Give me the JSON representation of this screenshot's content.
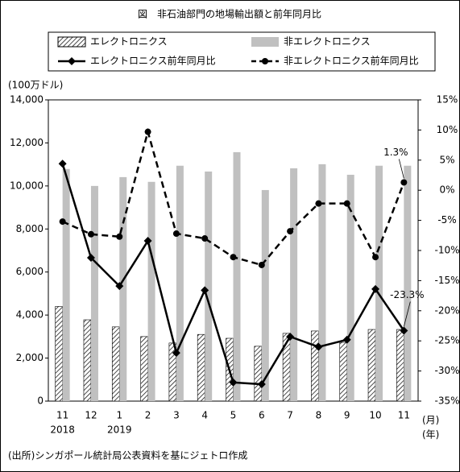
{
  "chart_data": {
    "type": "bar-line",
    "title": "図　非石油部門の地場輸出額と前年同月比",
    "y_unit": "(100万ドル)",
    "x_unit": "(月)",
    "x_unit2": "(年)",
    "source": "(出所)シンガポール統計局公表資料を基にジェトロ作成",
    "categories": [
      "11",
      "12",
      "1",
      "2",
      "3",
      "4",
      "5",
      "6",
      "7",
      "8",
      "9",
      "10",
      "11"
    ],
    "year_labels": [
      "2018",
      null,
      "2019",
      null,
      null,
      null,
      null,
      null,
      null,
      null,
      null,
      null,
      null
    ],
    "ylim": [
      0,
      14000
    ],
    "yticks": [
      0,
      {
        "value": 2000,
        "label": "2,000"
      },
      {
        "value": 4000,
        "label": "4,000"
      },
      {
        "value": 6000,
        "label": "6,000"
      },
      {
        "value": 8000,
        "label": "8,000"
      },
      {
        "value": 10000,
        "label": "10,000"
      },
      {
        "value": 12000,
        "label": "12,000"
      },
      {
        "value": 14000,
        "label": "14,000"
      }
    ],
    "y2lim": [
      -35,
      15
    ],
    "y2ticks": [
      {
        "value": -35,
        "label": "-35%"
      },
      {
        "value": -30,
        "label": "-30%"
      },
      {
        "value": -25,
        "label": "-25%"
      },
      {
        "value": -20,
        "label": "-20%"
      },
      {
        "value": -15,
        "label": "-15%"
      },
      {
        "value": -10,
        "label": "-10%"
      },
      {
        "value": -5,
        "label": "-5%"
      },
      {
        "value": 0,
        "label": "0%"
      },
      {
        "value": 5,
        "label": "5%"
      },
      {
        "value": 10,
        "label": "10%"
      },
      {
        "value": 15,
        "label": "15%"
      }
    ],
    "series": [
      {
        "name": "エレクトロニクス",
        "kind": "bar",
        "pattern": "hatch",
        "color": "#000000",
        "values": [
          4400,
          3780,
          3450,
          3000,
          2700,
          3100,
          2920,
          2550,
          3150,
          3260,
          2730,
          3330,
          3330
        ]
      },
      {
        "name": "非エレクトロニクス",
        "kind": "bar",
        "color": "#c0c0c0",
        "values": [
          10790,
          10000,
          10410,
          10190,
          10940,
          10670,
          11570,
          9810,
          10820,
          11010,
          10520,
          10940,
          10940
        ]
      },
      {
        "name": "エレクトロニクス前年同月比",
        "kind": "line",
        "axis": "y2",
        "marker": "diamond",
        "dash": false,
        "color": "#000000",
        "values": [
          4.4,
          -11.2,
          -15.9,
          -8.4,
          -27,
          -16.6,
          -31.9,
          -32.2,
          -24.3,
          -26,
          -24.8,
          -16.4,
          -23.3
        ]
      },
      {
        "name": "非エレクトロニクス前年同月比",
        "kind": "line",
        "axis": "y2",
        "marker": "circle",
        "dash": true,
        "color": "#000000",
        "values": [
          -5.2,
          -7.3,
          -7.7,
          9.7,
          -7.2,
          -8,
          -11.1,
          -12.4,
          -6.8,
          -2.2,
          -2.2,
          -11.1,
          1.3
        ]
      }
    ],
    "annotations": [
      {
        "text": "1.3%",
        "series": 3,
        "index": 12
      },
      {
        "text": "-23.3%",
        "series": 2,
        "index": 12
      }
    ]
  }
}
